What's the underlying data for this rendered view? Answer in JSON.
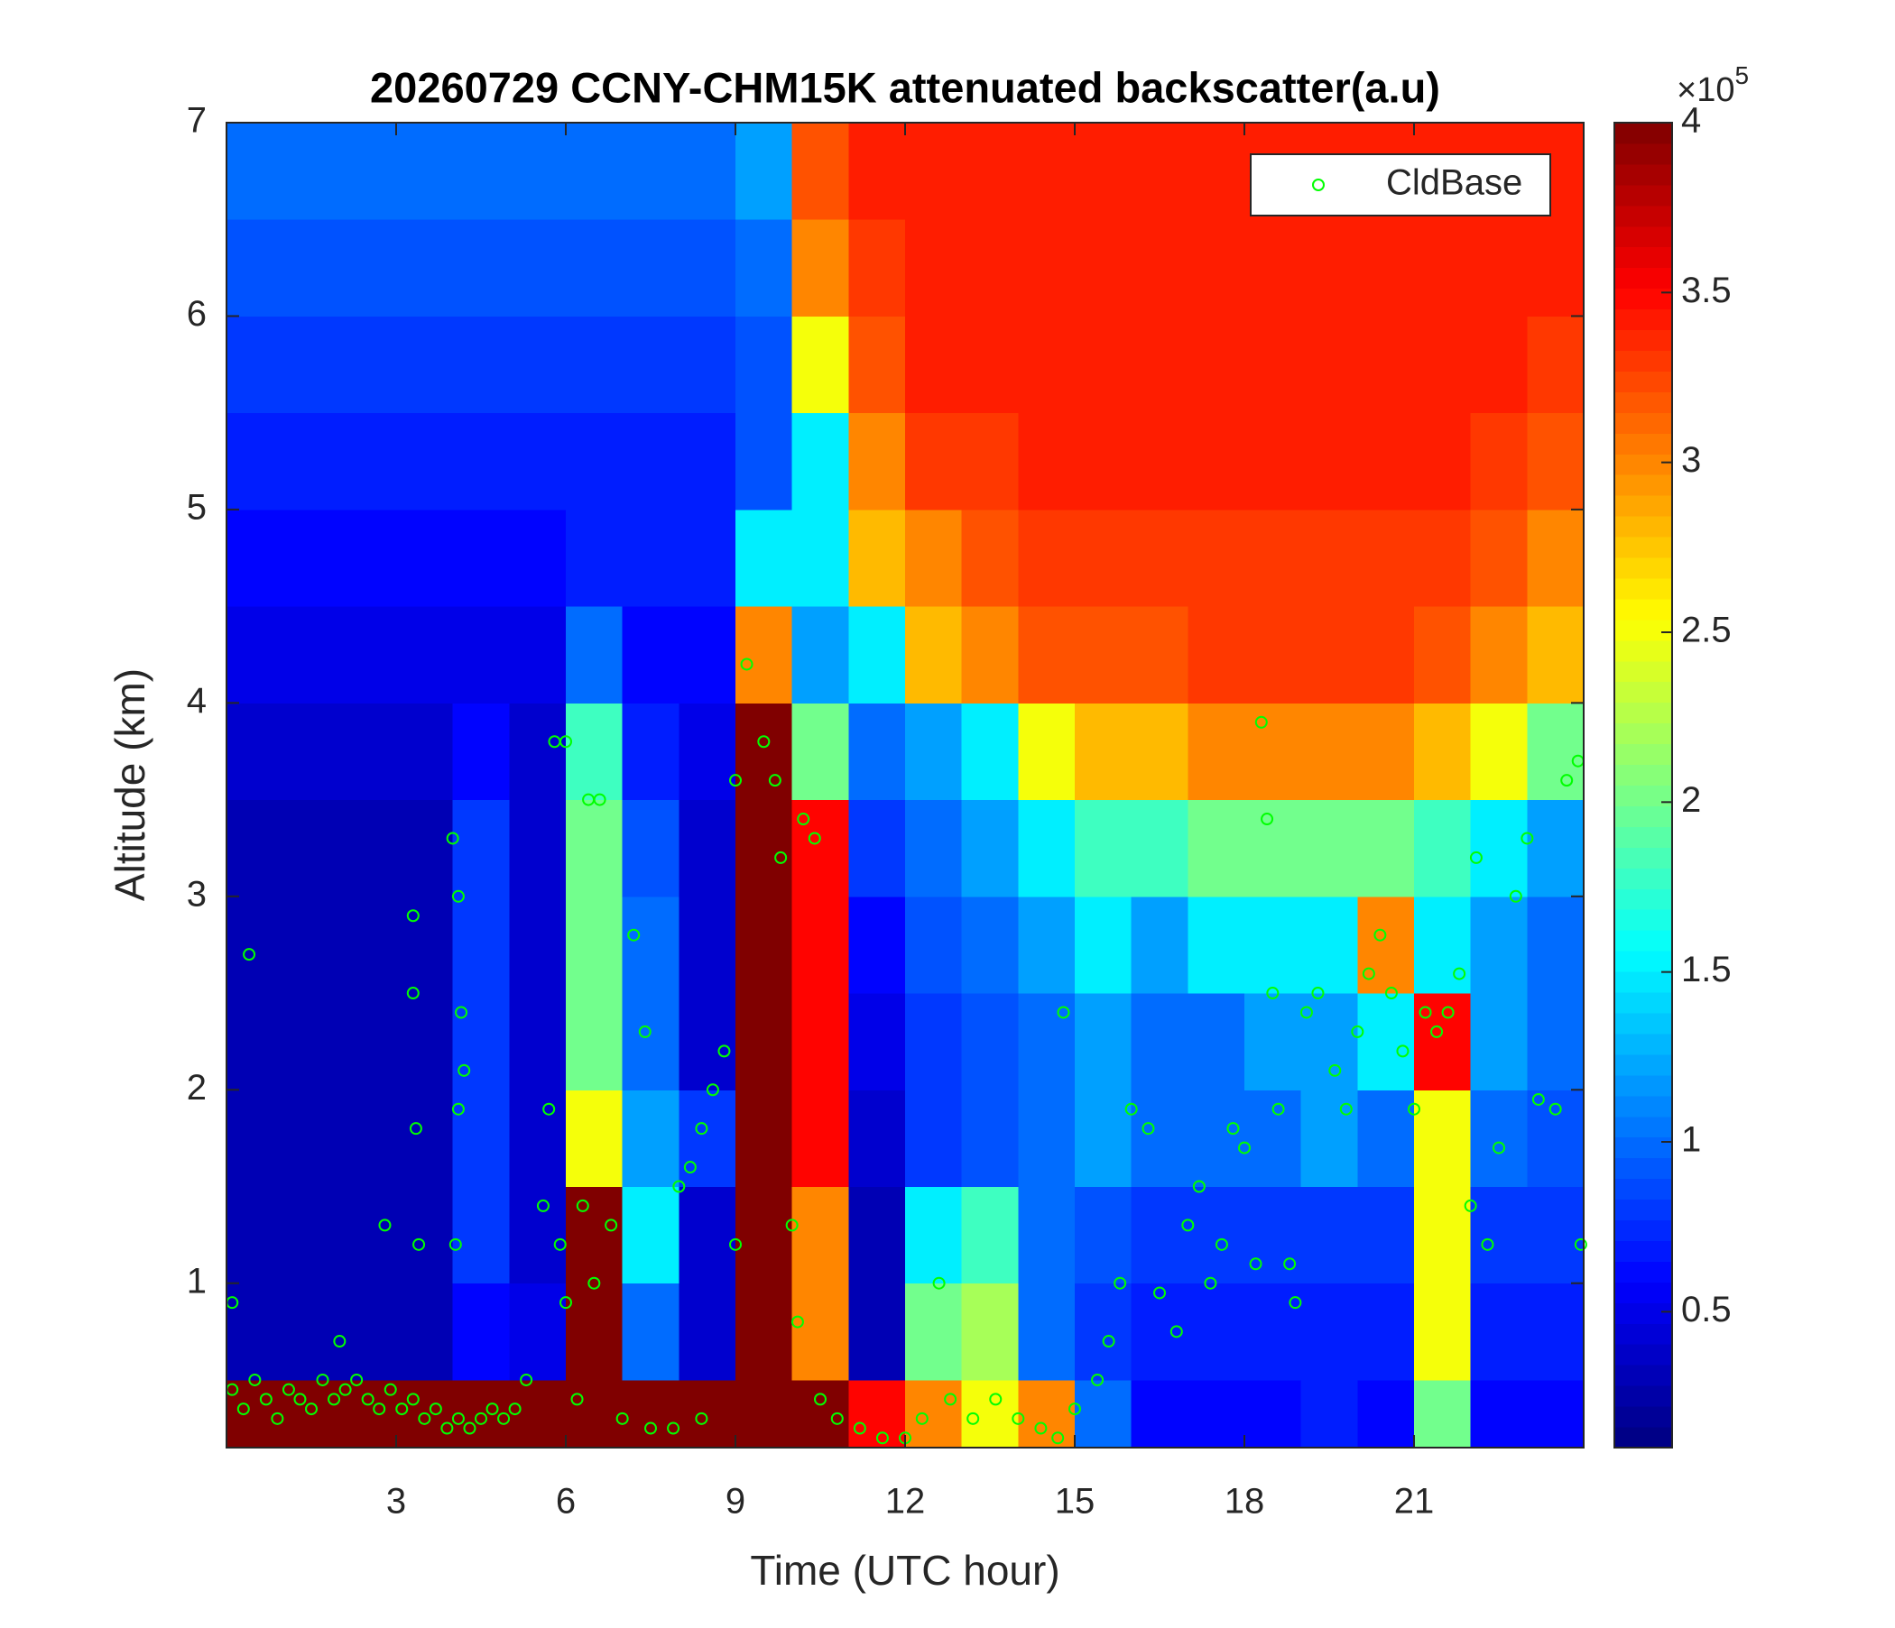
{
  "chart_data": {
    "type": "heatmap",
    "title": "20260729 CCNY-CHM15K attenuated backscatter(a.u)",
    "xlabel": "Time (UTC hour)",
    "ylabel": "Altitude (km)",
    "xlim": [
      0,
      24
    ],
    "xticks": [
      3,
      6,
      9,
      12,
      15,
      18,
      21
    ],
    "ylim": [
      0.15,
      7
    ],
    "yticks": [
      1,
      2,
      3,
      4,
      5,
      6,
      7
    ],
    "colormap": "jet",
    "clim": [
      0.1,
      4
    ],
    "cticks": [
      0.5,
      1,
      1.5,
      2,
      2.5,
      3,
      3.5,
      4
    ],
    "cbar_scale": {
      "base": "×10",
      "exponent": "5"
    },
    "legend": "northeast",
    "x_edges": [
      0,
      1,
      2,
      3,
      4,
      5,
      6,
      7,
      8,
      9,
      10,
      11,
      12,
      13,
      14,
      15,
      16,
      17,
      18,
      19,
      20,
      21,
      22,
      23,
      24
    ],
    "y_edges": [
      0.15,
      0.5,
      1,
      1.5,
      2,
      2.5,
      3,
      3.5,
      4,
      4.5,
      5,
      5.5,
      6,
      6.5,
      7
    ],
    "z": [
      [
        4,
        4,
        4,
        4,
        4,
        4,
        4,
        4,
        4,
        4,
        4,
        3.5,
        3,
        2.5,
        3,
        1,
        0.6,
        0.6,
        0.6,
        0.7,
        0.6,
        2,
        0.6,
        0.6
      ],
      [
        0.3,
        0.3,
        0.3,
        0.3,
        0.6,
        0.5,
        4,
        1,
        0.4,
        4,
        3,
        0.3,
        2,
        2.2,
        1,
        0.8,
        0.7,
        0.7,
        0.7,
        0.7,
        0.7,
        2.5,
        0.7,
        0.7
      ],
      [
        0.3,
        0.3,
        0.3,
        0.3,
        0.8,
        0.4,
        4,
        1.5,
        0.4,
        4,
        3,
        0.3,
        1.5,
        1.8,
        1,
        0.9,
        0.8,
        0.8,
        0.8,
        0.8,
        0.8,
        2.5,
        0.8,
        0.8
      ],
      [
        0.3,
        0.3,
        0.3,
        0.3,
        0.8,
        0.4,
        2.5,
        1.2,
        0.8,
        4,
        3.5,
        0.4,
        0.8,
        0.9,
        1,
        1.2,
        1,
        1,
        1,
        1.2,
        1,
        2.5,
        1,
        0.9
      ],
      [
        0.3,
        0.3,
        0.3,
        0.3,
        0.8,
        0.4,
        2,
        1,
        0.4,
        4,
        3.5,
        0.5,
        0.8,
        0.9,
        1,
        1.2,
        1,
        1,
        1.2,
        1.2,
        1.5,
        3.5,
        1.2,
        1
      ],
      [
        0.3,
        0.3,
        0.3,
        0.3,
        0.8,
        0.4,
        2,
        1,
        0.4,
        4,
        3.5,
        0.6,
        0.9,
        1,
        1.2,
        1.5,
        1.2,
        1.5,
        1.5,
        1.5,
        3,
        1.5,
        1.2,
        1
      ],
      [
        0.3,
        0.3,
        0.3,
        0.3,
        0.8,
        0.4,
        2,
        0.9,
        0.4,
        4,
        3.5,
        0.8,
        1,
        1.2,
        1.5,
        1.8,
        1.8,
        2,
        2,
        2,
        2,
        1.8,
        1.5,
        1.2
      ],
      [
        0.4,
        0.4,
        0.4,
        0.4,
        0.6,
        0.4,
        1.8,
        0.7,
        0.5,
        4,
        2,
        1,
        1.2,
        1.5,
        2.5,
        2.8,
        2.8,
        3,
        3,
        3,
        3,
        2.8,
        2.5,
        2
      ],
      [
        0.5,
        0.5,
        0.5,
        0.5,
        0.5,
        0.5,
        1,
        0.6,
        0.6,
        3,
        1.2,
        1.5,
        2.8,
        3,
        3.2,
        3.2,
        3.2,
        3.3,
        3.3,
        3.3,
        3.3,
        3.2,
        3,
        2.8
      ],
      [
        0.6,
        0.6,
        0.6,
        0.6,
        0.6,
        0.6,
        0.7,
        0.7,
        0.7,
        1.5,
        1.5,
        2.8,
        3,
        3.2,
        3.3,
        3.3,
        3.3,
        3.3,
        3.3,
        3.3,
        3.3,
        3.3,
        3.2,
        3
      ],
      [
        0.7,
        0.7,
        0.7,
        0.7,
        0.7,
        0.7,
        0.7,
        0.7,
        0.7,
        0.9,
        1.5,
        3,
        3.3,
        3.3,
        3.4,
        3.4,
        3.4,
        3.4,
        3.4,
        3.4,
        3.4,
        3.4,
        3.3,
        3.2
      ],
      [
        0.8,
        0.8,
        0.8,
        0.8,
        0.8,
        0.8,
        0.8,
        0.8,
        0.8,
        0.9,
        2.5,
        3.2,
        3.4,
        3.4,
        3.4,
        3.4,
        3.4,
        3.4,
        3.4,
        3.4,
        3.4,
        3.4,
        3.4,
        3.3
      ],
      [
        0.9,
        0.9,
        0.9,
        0.9,
        0.9,
        0.9,
        0.9,
        0.9,
        0.9,
        1,
        3,
        3.3,
        3.4,
        3.4,
        3.4,
        3.4,
        3.4,
        3.4,
        3.4,
        3.4,
        3.4,
        3.4,
        3.4,
        3.4
      ],
      [
        1,
        1,
        1,
        1,
        1,
        1,
        1,
        1,
        1,
        1.2,
        3.2,
        3.4,
        3.4,
        3.4,
        3.4,
        3.4,
        3.4,
        3.4,
        3.4,
        3.4,
        3.4,
        3.4,
        3.4,
        3.4
      ]
    ],
    "series": [
      {
        "name": "CldBase",
        "type": "scatter",
        "color": "#00ff00",
        "marker": "o",
        "x": [
          0.1,
          0.3,
          0.5,
          0.7,
          0.9,
          1.1,
          1.3,
          1.5,
          1.7,
          1.9,
          2.1,
          2.3,
          2.5,
          2.7,
          2.9,
          3.1,
          3.3,
          3.5,
          3.7,
          3.9,
          4.1,
          4.3,
          4.5,
          4.7,
          4.9,
          5.1,
          5.3,
          0.1,
          0.4,
          2.0,
          2.8,
          3.3,
          3.35,
          3.3,
          3.4,
          4.0,
          4.1,
          4.15,
          4.2,
          4.1,
          4.05,
          5.6,
          5.7,
          5.8,
          6.0,
          5.9,
          6.0,
          6.2,
          6.3,
          6.4,
          6.6,
          6.5,
          6.8,
          7.0,
          7.2,
          7.4,
          7.5,
          7.9,
          8.0,
          8.2,
          8.4,
          8.6,
          8.8,
          8.4,
          9.0,
          9.2,
          9.0,
          9.5,
          9.7,
          9.8,
          10.0,
          10.1,
          10.2,
          10.4,
          10.5,
          10.8,
          11.2,
          11.6,
          12.0,
          12.3,
          12.6,
          12.8,
          13.2,
          13.6,
          14.0,
          14.4,
          14.7,
          14.8,
          15.0,
          15.4,
          15.6,
          15.8,
          16.0,
          16.3,
          16.5,
          16.8,
          17.0,
          17.2,
          17.4,
          17.6,
          17.8,
          18.0,
          18.2,
          18.3,
          18.4,
          18.5,
          18.6,
          18.8,
          18.9,
          19.1,
          19.3,
          19.6,
          19.8,
          20.0,
          20.2,
          20.4,
          20.6,
          20.8,
          21.0,
          21.2,
          21.4,
          21.6,
          21.8,
          22.0,
          22.1,
          22.3,
          22.5,
          22.8,
          23.0,
          23.2,
          23.5,
          23.7,
          23.9,
          23.95
        ],
        "y": [
          0.45,
          0.35,
          0.5,
          0.4,
          0.3,
          0.45,
          0.4,
          0.35,
          0.5,
          0.4,
          0.45,
          0.5,
          0.4,
          0.35,
          0.45,
          0.35,
          0.4,
          0.3,
          0.35,
          0.25,
          0.3,
          0.25,
          0.3,
          0.35,
          0.3,
          0.35,
          0.5,
          0.9,
          2.7,
          0.7,
          1.3,
          2.9,
          1.8,
          2.5,
          1.2,
          3.3,
          3.0,
          2.4,
          2.1,
          1.9,
          1.2,
          1.4,
          1.9,
          3.8,
          3.8,
          1.2,
          0.9,
          0.4,
          1.4,
          3.5,
          3.5,
          1.0,
          1.3,
          0.3,
          2.8,
          2.3,
          0.25,
          0.25,
          1.5,
          1.6,
          1.8,
          2.0,
          2.2,
          0.3,
          3.6,
          4.2,
          1.2,
          3.8,
          3.6,
          3.2,
          1.3,
          0.8,
          3.4,
          3.3,
          0.4,
          0.3,
          0.25,
          0.2,
          0.2,
          0.3,
          1.0,
          0.4,
          0.3,
          0.4,
          0.3,
          0.25,
          0.2,
          2.4,
          0.35,
          0.5,
          0.7,
          1.0,
          1.9,
          1.8,
          0.95,
          0.75,
          1.3,
          1.5,
          1.0,
          1.2,
          1.8,
          1.7,
          1.1,
          3.9,
          3.4,
          2.5,
          1.9,
          1.1,
          0.9,
          2.4,
          2.5,
          2.1,
          1.9,
          2.3,
          2.6,
          2.8,
          2.5,
          2.2,
          1.9,
          2.4,
          2.3,
          2.4,
          2.6,
          1.4,
          3.2,
          1.2,
          1.7,
          3.0,
          3.3,
          1.95,
          1.9,
          3.6,
          3.7,
          1.2
        ]
      }
    ]
  }
}
